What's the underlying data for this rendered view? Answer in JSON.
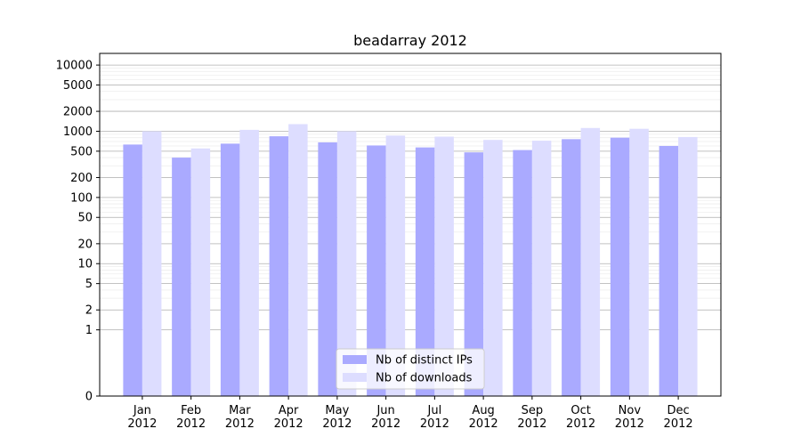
{
  "chart_data": {
    "type": "bar",
    "title": "beadarray 2012",
    "xlabel": "",
    "ylabel": "",
    "yscale": "symlog",
    "ylim": [
      0,
      15000
    ],
    "yticks": [
      0,
      1,
      2,
      5,
      10,
      20,
      50,
      100,
      200,
      500,
      1000,
      2000,
      5000,
      10000
    ],
    "ytick_labels": [
      "0",
      "1",
      "2",
      "5",
      "10",
      "20",
      "50",
      "100",
      "200",
      "500",
      "1000",
      "2000",
      "5000",
      "10000"
    ],
    "categories": [
      "Jan\n2012",
      "Feb\n2012",
      "Mar\n2012",
      "Apr\n2012",
      "May\n2012",
      "Jun\n2012",
      "Jul\n2012",
      "Aug\n2012",
      "Sep\n2012",
      "Oct\n2012",
      "Nov\n2012",
      "Dec\n2012"
    ],
    "series": [
      {
        "name": "Nb of distinct IPs",
        "color": "#aaaaff",
        "values": [
          630,
          400,
          650,
          840,
          680,
          610,
          570,
          480,
          520,
          760,
          800,
          600
        ]
      },
      {
        "name": "Nb of downloads",
        "color": "#ddddff",
        "values": [
          1000,
          550,
          1050,
          1280,
          1000,
          860,
          830,
          740,
          720,
          1120,
          1090,
          820
        ]
      }
    ],
    "grid": true,
    "legend": "lower-center"
  }
}
